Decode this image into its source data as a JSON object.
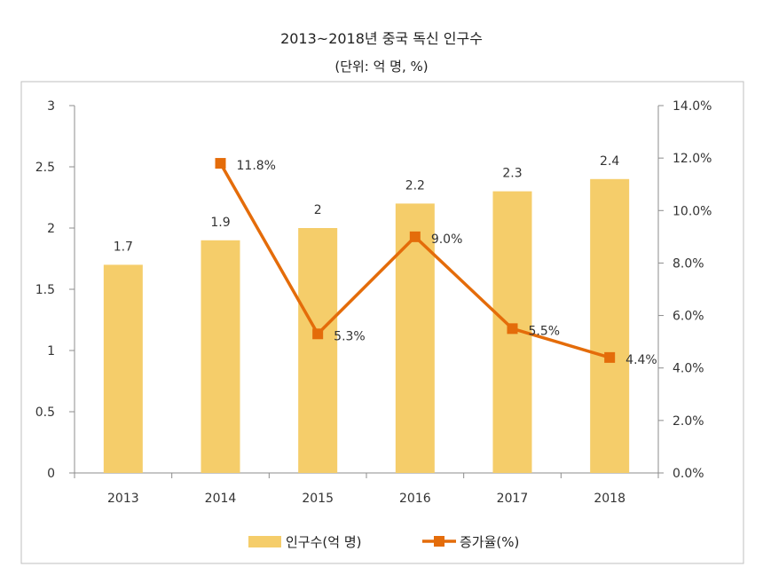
{
  "chart_data": {
    "type": "bar",
    "title": "2013~2018년 중국  독신 인구수",
    "subtitle": "(단위: 억 명, %)",
    "categories": [
      "2013",
      "2014",
      "2015",
      "2016",
      "2017",
      "2018"
    ],
    "series": [
      {
        "name": "인구수(억  명)",
        "type": "bar",
        "axis": "left",
        "values": [
          1.7,
          1.9,
          2,
          2.2,
          2.3,
          2.4
        ],
        "labels": [
          "1.7",
          "1.9",
          "2",
          "2.2",
          "2.3",
          "2.4"
        ],
        "color": "#f5cd6a"
      },
      {
        "name": "증가율(%)",
        "type": "line",
        "axis": "right",
        "values": [
          null,
          11.8,
          5.3,
          9.0,
          5.5,
          4.4
        ],
        "labels": [
          null,
          "11.8%",
          "5.3%",
          "9.0%",
          "5.5%",
          "4.4%"
        ],
        "color": "#e46c0a"
      }
    ],
    "y_left": {
      "range": [
        0,
        3
      ],
      "ticks": [
        "0",
        "0.5",
        "1",
        "1.5",
        "2",
        "2.5",
        "3"
      ],
      "values": [
        0,
        0.5,
        1,
        1.5,
        2,
        2.5,
        3
      ]
    },
    "y_right": {
      "range": [
        0,
        14
      ],
      "ticks": [
        "0.0%",
        "2.0%",
        "4.0%",
        "6.0%",
        "8.0%",
        "10.0%",
        "12.0%",
        "14.0%"
      ],
      "values": [
        0,
        2,
        4,
        6,
        8,
        10,
        12,
        14
      ]
    },
    "grid": false,
    "legend_position": "bottom"
  }
}
